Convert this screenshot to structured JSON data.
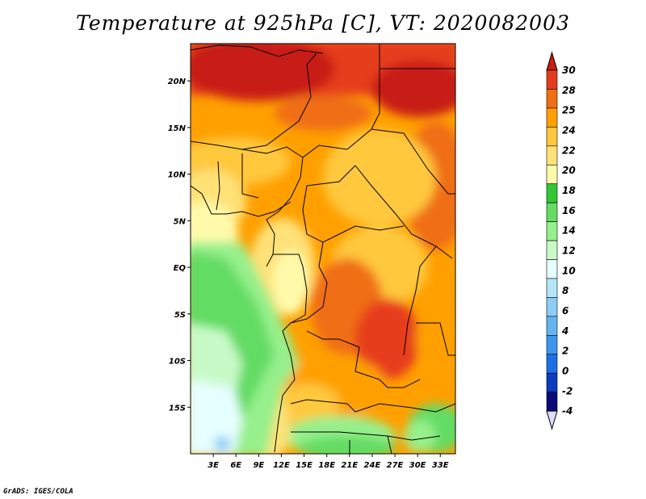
{
  "title": "Temperature at 925hPa [C], VT: 2020082003",
  "footer": "GrADS: IGES/COLA",
  "map": {
    "lon_range": [
      0,
      35
    ],
    "lat_range": [
      -20,
      24
    ],
    "lat_ticks": [
      {
        "value": 20,
        "label": "20N"
      },
      {
        "value": 15,
        "label": "15N"
      },
      {
        "value": 10,
        "label": "10N"
      },
      {
        "value": 5,
        "label": "5N"
      },
      {
        "value": 0,
        "label": "EQ"
      },
      {
        "value": -5,
        "label": "5S"
      },
      {
        "value": -10,
        "label": "10S"
      },
      {
        "value": -15,
        "label": "15S"
      }
    ],
    "lon_ticks": [
      {
        "value": 3,
        "label": "3E"
      },
      {
        "value": 6,
        "label": "6E"
      },
      {
        "value": 9,
        "label": "9E"
      },
      {
        "value": 12,
        "label": "12E"
      },
      {
        "value": 15,
        "label": "15E"
      },
      {
        "value": 18,
        "label": "18E"
      },
      {
        "value": 21,
        "label": "21E"
      },
      {
        "value": 24,
        "label": "24E"
      },
      {
        "value": 27,
        "label": "27E"
      },
      {
        "value": 30,
        "label": "30E"
      },
      {
        "value": 33,
        "label": "33E"
      }
    ]
  },
  "colorbar": {
    "levels": [
      "-4",
      "-2",
      "0",
      "2",
      "4",
      "6",
      "8",
      "10",
      "12",
      "14",
      "16",
      "18",
      "20",
      "22",
      "24",
      "25",
      "28",
      "30"
    ],
    "colors": [
      "#0a0a78",
      "#0c3cbe",
      "#1e6ee6",
      "#3c96f0",
      "#64b4f0",
      "#8ccdf5",
      "#b4e6fa",
      "#e6ffff",
      "#c8fac8",
      "#96f08c",
      "#64dc64",
      "#32c832",
      "#fffaaa",
      "#ffe178",
      "#ffc83c",
      "#ffa000",
      "#f06e14",
      "#e63c1e",
      "#c81e14"
    ],
    "under_color": "#dcdcff",
    "over_color": "#c81e14"
  }
}
